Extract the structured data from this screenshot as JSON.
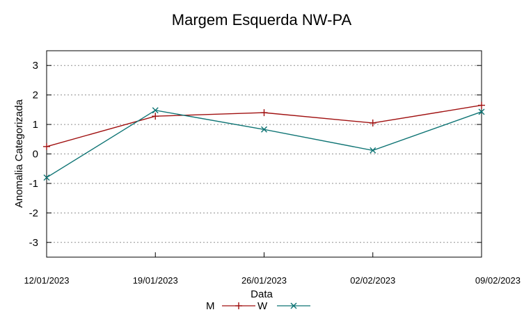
{
  "chart_data": {
    "type": "line",
    "title": "Margem Esquerda NW-PA",
    "xlabel": "Data",
    "ylabel": "Anomalia Categorizada",
    "categories": [
      "12/01/2023",
      "19/01/2023",
      "26/01/2023",
      "02/02/2023",
      "09/02/2023"
    ],
    "ylim": [
      -3.5,
      3.5
    ],
    "yticks": [
      3,
      2,
      1,
      0,
      -1,
      -2,
      -3
    ],
    "ytick_labels": [
      "3",
      "2",
      "1",
      "0",
      "-1",
      "-2",
      "-3"
    ],
    "grid": true,
    "legend_position": "bottom",
    "series": [
      {
        "name": "M",
        "values": [
          0.25,
          1.28,
          1.4,
          1.05,
          1.65
        ],
        "color": "#a01010",
        "marker": "plus"
      },
      {
        "name": "W",
        "values": [
          -0.8,
          1.48,
          0.83,
          0.12,
          1.43
        ],
        "color": "#0e7474",
        "marker": "cross"
      }
    ]
  }
}
